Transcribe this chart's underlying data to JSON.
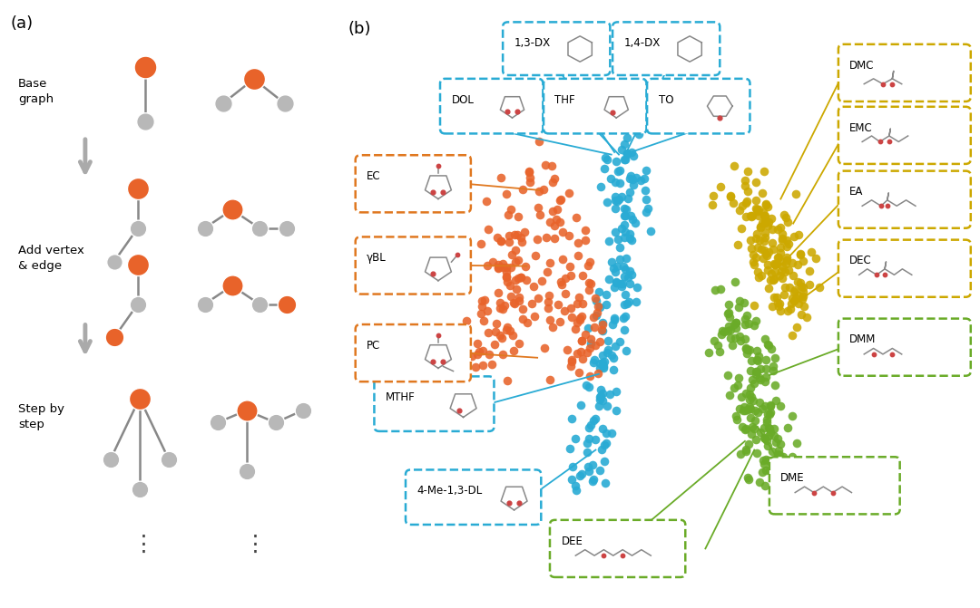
{
  "panel_a_label": "(a)",
  "panel_b_label": "(b)",
  "orange_color": "#E8632A",
  "gray_color": "#AAAAAA",
  "bg_color": "#FFFFFF",
  "cyan_color": "#29ABD4",
  "orange_box_color": "#E07820",
  "yellow_color": "#CCA800",
  "green_color": "#6AAB28",
  "section_labels": [
    "Base\ngraph",
    "Add vertex\n& edge",
    "Step by\nstep"
  ]
}
